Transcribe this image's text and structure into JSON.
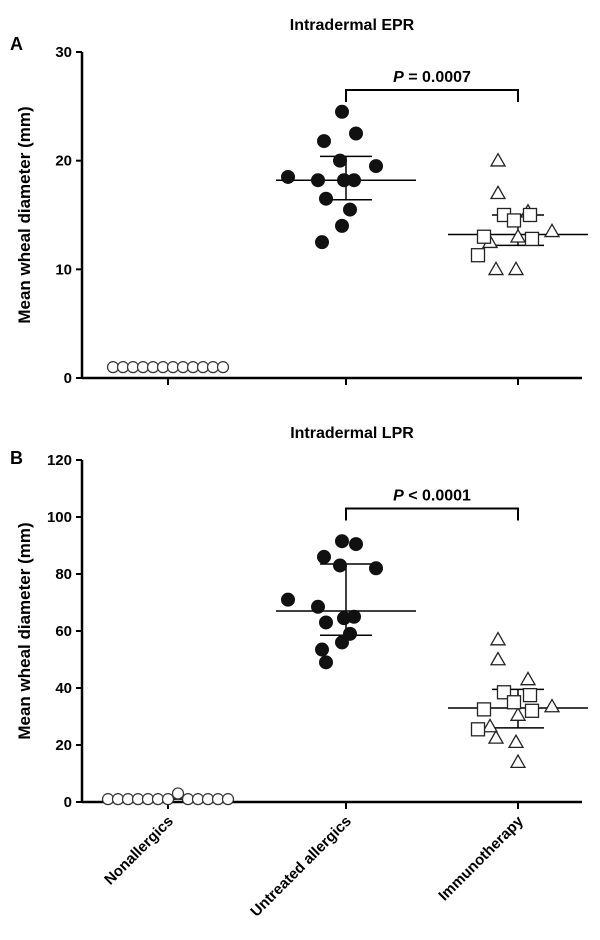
{
  "chart_data": [
    {
      "type": "scatter",
      "panel": "A",
      "title": "Intradermal EPR",
      "ylabel": "Mean wheal diameter (mm)",
      "ylim": [
        0,
        30
      ],
      "yticks": [
        0,
        10,
        20,
        30
      ],
      "categories": [
        "Nonallergics",
        "Untreated allergics",
        "Immunotherapy"
      ],
      "groups": [
        {
          "category": "Nonallergics",
          "marker": "circle-open",
          "values": [
            1,
            1,
            1,
            1,
            1,
            1,
            1,
            1,
            1,
            1,
            1,
            1
          ],
          "median": 1
        },
        {
          "category": "Untreated allergics",
          "marker": "circle-filled",
          "values": [
            24.5,
            22.5,
            21.8,
            20.0,
            19.5,
            18.5,
            18.2,
            18.2,
            18.2,
            16.5,
            15.5,
            14.0,
            12.5
          ],
          "median": 18.2,
          "q1": 16.4,
          "q3": 20.4
        },
        {
          "category": "Immunotherapy",
          "subgroups": [
            {
              "marker": "triangle-open",
              "values": [
                20.0,
                17.0,
                15.3,
                13.5,
                13.0,
                12.5,
                10.0,
                10.0
              ]
            },
            {
              "marker": "square-open",
              "values": [
                15.0,
                15.0,
                14.5,
                13.0,
                12.8,
                11.3
              ]
            }
          ],
          "median": 13.2,
          "q1": 12.2,
          "q3": 15.0
        }
      ],
      "annotation": {
        "from": "Untreated allergics",
        "to": "Immunotherapy",
        "label_italic": "P",
        "label_rest": " = 0.0007",
        "y": 26.5
      }
    },
    {
      "type": "scatter",
      "panel": "B",
      "title": "Intradermal LPR",
      "ylabel": "Mean wheal diameter (mm)",
      "ylim": [
        0,
        120
      ],
      "yticks": [
        0,
        20,
        40,
        60,
        80,
        100,
        120
      ],
      "categories": [
        "Nonallergics",
        "Untreated allergics",
        "Immunotherapy"
      ],
      "groups": [
        {
          "category": "Nonallergics",
          "marker": "circle-open",
          "values": [
            1,
            1,
            1,
            1,
            1,
            1,
            1,
            3,
            1,
            1,
            1,
            1,
            1
          ],
          "median": 1
        },
        {
          "category": "Untreated allergics",
          "marker": "circle-filled",
          "values": [
            91.5,
            90.5,
            86.0,
            83.0,
            82.0,
            71.0,
            68.5,
            65.0,
            64.5,
            63.0,
            59.0,
            56.0,
            53.5,
            49.0
          ],
          "median": 67.0,
          "q1": 58.5,
          "q3": 83.5
        },
        {
          "category": "Immunotherapy",
          "subgroups": [
            {
              "marker": "triangle-open",
              "values": [
                57.0,
                50.0,
                43.0,
                33.5,
                30.5,
                26.5,
                22.5,
                21.0,
                14.0
              ]
            },
            {
              "marker": "square-open",
              "values": [
                38.5,
                37.5,
                35.0,
                32.5,
                32.0,
                25.5
              ]
            }
          ],
          "median": 33.0,
          "q1": 26.0,
          "q3": 39.5
        }
      ],
      "annotation": {
        "from": "Untreated allergics",
        "to": "Immunotherapy",
        "label_italic": "P",
        "label_rest": " < 0.0001",
        "y": 103
      }
    }
  ]
}
